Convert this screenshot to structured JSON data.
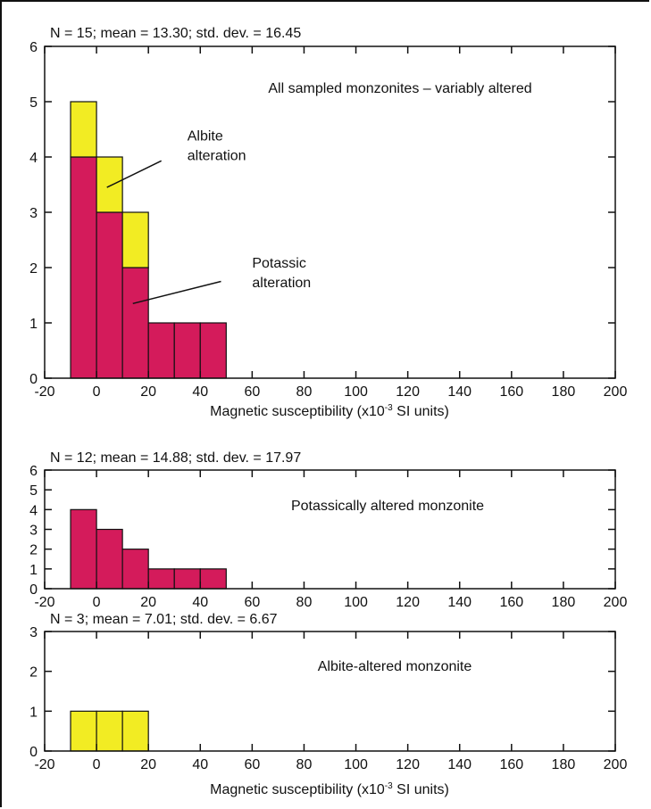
{
  "chart_data": [
    {
      "type": "bar",
      "panel": "top",
      "stats_label": "N = 15; mean = 13.30; std. dev. = 16.45",
      "title": "All sampled monzonites – variably altered",
      "xlabel_main": "Magnetic susceptibility (x10",
      "xlabel_exp": "-3",
      "xlabel_tail": " SI units)",
      "xlim": [
        -20,
        200
      ],
      "ylim": [
        0,
        6
      ],
      "xticks": [
        -20,
        0,
        20,
        40,
        60,
        80,
        100,
        120,
        140,
        160,
        180,
        200
      ],
      "yticks": [
        0,
        1,
        2,
        3,
        4,
        5,
        6
      ],
      "bin_edges": [
        -10,
        0,
        10,
        20,
        30,
        40,
        50
      ],
      "series": [
        {
          "name": "Potassic alteration",
          "color": "#D41B5B",
          "values": [
            4,
            3,
            2,
            1,
            1,
            1
          ]
        },
        {
          "name": "Albite alteration",
          "color": "#F2EC23",
          "values": [
            1,
            1,
            1,
            0,
            0,
            0
          ]
        }
      ],
      "annotations": [
        {
          "lines": [
            "Albite",
            "alteration"
          ],
          "text_at": [
            35,
            4.3
          ],
          "arrow_from": [
            25,
            3.93
          ],
          "arrow_to": [
            4,
            3.45
          ]
        },
        {
          "lines": [
            "Potassic",
            "alteration"
          ],
          "text_at": [
            60,
            2.0
          ],
          "arrow_from": [
            48,
            1.75
          ],
          "arrow_to": [
            14,
            1.35
          ]
        }
      ]
    },
    {
      "type": "bar",
      "panel": "middle",
      "stats_label": "N = 12; mean = 14.88; std. dev. = 17.97",
      "title": "Potassically altered monzonite",
      "xlim": [
        -20,
        200
      ],
      "ylim": [
        0,
        6
      ],
      "xticks": [
        -20,
        0,
        20,
        40,
        60,
        80,
        100,
        120,
        140,
        160,
        180,
        200
      ],
      "yticks": [
        0,
        1,
        2,
        3,
        4,
        5,
        6
      ],
      "bin_edges": [
        -10,
        0,
        10,
        20,
        30,
        40,
        50
      ],
      "series": [
        {
          "color": "#D41B5B",
          "values": [
            4,
            3,
            2,
            1,
            1,
            1
          ]
        }
      ]
    },
    {
      "type": "bar",
      "panel": "bottom",
      "stats_label": "N = 3; mean = 7.01; std. dev. = 6.67",
      "title": "Albite-altered monzonite",
      "xlabel_main": "Magnetic susceptibility (x10",
      "xlabel_exp": "-3",
      "xlabel_tail": " SI units)",
      "xlim": [
        -20,
        200
      ],
      "ylim": [
        0,
        3
      ],
      "xticks": [
        -20,
        0,
        20,
        40,
        60,
        80,
        100,
        120,
        140,
        160,
        180,
        200
      ],
      "yticks": [
        0,
        1,
        2,
        3
      ],
      "bin_edges": [
        -10,
        0,
        10,
        20
      ],
      "series": [
        {
          "color": "#F2EC23",
          "values": [
            1,
            1,
            1
          ]
        }
      ]
    }
  ]
}
